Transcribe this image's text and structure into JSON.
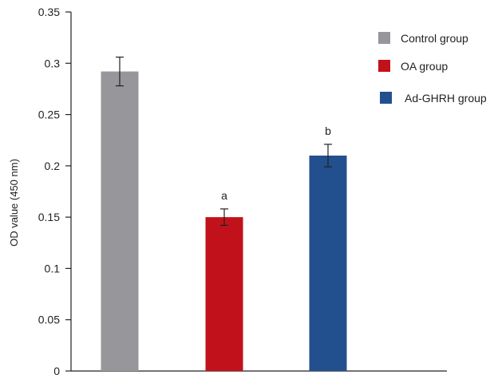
{
  "chart_data": {
    "type": "bar",
    "categories": [
      "Control group",
      "OA group",
      "Ad-GHRH group"
    ],
    "values": [
      0.292,
      0.15,
      0.21
    ],
    "errors": [
      0.014,
      0.008,
      0.011
    ],
    "annotations": [
      "",
      "a",
      "b"
    ],
    "colors": [
      "#97979b",
      "#c1121b",
      "#22508f"
    ],
    "ylabel": "OD value (450 nm)",
    "xlabel": "",
    "ylim": [
      0,
      0.35
    ],
    "yticks": [
      0,
      0.05,
      0.1,
      0.15,
      0.2,
      0.25,
      0.3,
      0.35
    ],
    "ytick_labels": [
      "0",
      "0.05",
      "0.1",
      "0.15",
      "0.2",
      "0.25",
      "0.3",
      "0.35"
    ],
    "grid": false,
    "legend": {
      "placement": "top-right",
      "entries": [
        "Control group",
        "OA group",
        "Ad-GHRH group"
      ]
    }
  }
}
